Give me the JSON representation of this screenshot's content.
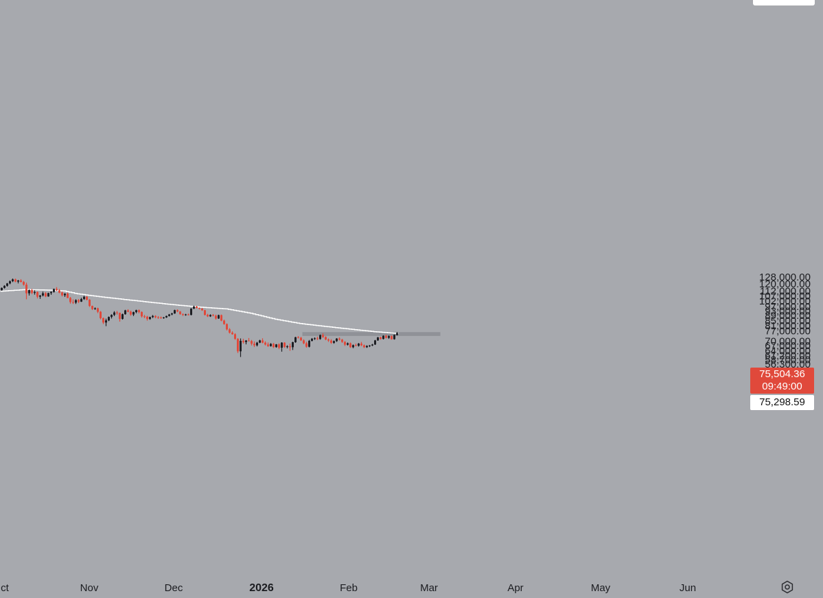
{
  "chart_data": {
    "type": "candlestick",
    "x_ticks": [
      "ct",
      "Nov",
      "Dec",
      "2026",
      "Feb",
      "Mar",
      "Apr",
      "May",
      "Jun"
    ],
    "y_ticks": [
      "128,000.00",
      "120,000.00",
      "112,000.00",
      "107,000.00",
      "102,000.00",
      "97,000.00",
      "93,000.00",
      "89,000.00",
      "85,000.00",
      "81,000.00",
      "77,000.00",
      "70,000.00",
      "67,000.00",
      "64,000.00",
      "61,200.00",
      "58,700.00",
      "56,300.00"
    ],
    "ylim": [
      55000,
      133000
    ],
    "y_scale": "log",
    "series": [
      {
        "candles": [
          [
            113000,
            116000,
            112500,
            115500
          ],
          [
            115500,
            118500,
            114800,
            117800
          ],
          [
            117800,
            121000,
            116900,
            120500
          ],
          [
            120500,
            124000,
            119500,
            123000
          ],
          [
            123000,
            126200,
            122000,
            125200
          ],
          [
            125200,
            126100,
            121800,
            122600
          ],
          [
            122600,
            124500,
            120500,
            123900
          ],
          [
            123900,
            125400,
            121700,
            122200
          ],
          [
            122200,
            123300,
            118000,
            119100
          ],
          [
            119100,
            121400,
            103800,
            109800
          ],
          [
            109800,
            113800,
            107500,
            113200
          ],
          [
            113200,
            114500,
            108900,
            110200
          ],
          [
            110200,
            113000,
            108400,
            111100
          ],
          [
            111100,
            111700,
            104600,
            106300
          ],
          [
            106300,
            108000,
            104200,
            107600
          ],
          [
            107600,
            111600,
            106600,
            109800
          ],
          [
            109800,
            111000,
            105900,
            106600
          ],
          [
            106600,
            110400,
            106300,
            110000
          ],
          [
            110000,
            111900,
            108200,
            111200
          ],
          [
            111200,
            114800,
            110500,
            114300
          ],
          [
            114300,
            116400,
            112400,
            112900
          ],
          [
            112900,
            114300,
            109800,
            110500
          ],
          [
            110500,
            111700,
            106600,
            107800
          ],
          [
            107800,
            109800,
            106100,
            109500
          ],
          [
            109500,
            110600,
            104900,
            105100
          ],
          [
            105100,
            106100,
            99600,
            101100
          ],
          [
            101100,
            103700,
            99300,
            100600
          ],
          [
            100600,
            103800,
            99300,
            103000
          ],
          [
            103000,
            104000,
            100100,
            101500
          ],
          [
            101500,
            105200,
            101200,
            104000
          ],
          [
            104000,
            107200,
            103200,
            106300
          ],
          [
            106300,
            106900,
            102800,
            103300
          ],
          [
            103300,
            103900,
            96600,
            97500
          ],
          [
            97500,
            97800,
            93800,
            94700
          ],
          [
            94700,
            96100,
            94000,
            95400
          ],
          [
            95400,
            95900,
            91100,
            92300
          ],
          [
            92300,
            92900,
            85900,
            86900
          ],
          [
            86900,
            87400,
            82200,
            83400
          ],
          [
            83400,
            86500,
            80600,
            85100
          ],
          [
            85100,
            88300,
            84500,
            87900
          ],
          [
            87900,
            90100,
            86600,
            89600
          ],
          [
            89600,
            92800,
            88600,
            91700
          ],
          [
            91700,
            93000,
            89800,
            91300
          ],
          [
            91300,
            91600,
            84100,
            86300
          ],
          [
            86300,
            90700,
            85700,
            90200
          ],
          [
            90200,
            94000,
            89800,
            93500
          ],
          [
            93500,
            94500,
            91900,
            92300
          ],
          [
            92300,
            93300,
            88900,
            89900
          ],
          [
            89900,
            92400,
            88600,
            92000
          ],
          [
            92000,
            94100,
            91000,
            93700
          ],
          [
            93700,
            94300,
            90900,
            92100
          ],
          [
            92100,
            92600,
            87400,
            88400
          ],
          [
            88400,
            89600,
            86900,
            88100
          ],
          [
            88100,
            88800,
            84900,
            86200
          ],
          [
            86200,
            88100,
            85600,
            87800
          ],
          [
            87800,
            89500,
            87000,
            88700
          ],
          [
            88700,
            89300,
            86800,
            87700
          ],
          [
            87700,
            88600,
            86300,
            87400
          ],
          [
            87400,
            88300,
            86400,
            87200
          ],
          [
            87200,
            87900,
            86400,
            87500
          ],
          [
            87500,
            89000,
            87100,
            88700
          ],
          [
            88700,
            90400,
            88300,
            90000
          ],
          [
            90000,
            91400,
            89300,
            90800
          ],
          [
            90800,
            94100,
            90500,
            93700
          ],
          [
            93700,
            94400,
            91900,
            92500
          ],
          [
            92500,
            92900,
            89800,
            90200
          ],
          [
            90200,
            90900,
            88700,
            89800
          ],
          [
            89800,
            90500,
            88900,
            90000
          ],
          [
            90000,
            90700,
            89200,
            89600
          ],
          [
            89600,
            95400,
            89200,
            95100
          ],
          [
            95100,
            97800,
            94600,
            96900
          ],
          [
            96900,
            97500,
            95200,
            95600
          ],
          [
            95600,
            96100,
            94300,
            95000
          ],
          [
            95000,
            95600,
            93100,
            93600
          ],
          [
            93600,
            94000,
            89100,
            89600
          ],
          [
            89600,
            90500,
            87800,
            88400
          ],
          [
            88400,
            90100,
            87900,
            89500
          ],
          [
            89500,
            90300,
            88400,
            88900
          ],
          [
            88900,
            89800,
            85700,
            86600
          ],
          [
            86600,
            89800,
            86300,
            89400
          ],
          [
            89400,
            89900,
            84400,
            84900
          ],
          [
            84900,
            85700,
            81700,
            82200
          ],
          [
            82200,
            82700,
            77400,
            78200
          ],
          [
            78200,
            79100,
            75200,
            75800
          ],
          [
            75800,
            76800,
            74400,
            74700
          ],
          [
            74700,
            75400,
            70900,
            71500
          ],
          [
            71500,
            72000,
            62600,
            63600
          ],
          [
            63600,
            71800,
            60300,
            70200
          ],
          [
            70200,
            71600,
            68400,
            69400
          ],
          [
            69400,
            70700,
            67900,
            70400
          ],
          [
            70400,
            72100,
            69900,
            70100
          ],
          [
            70100,
            70800,
            67200,
            68300
          ],
          [
            68300,
            69800,
            66200,
            67300
          ],
          [
            67300,
            69500,
            66600,
            69000
          ],
          [
            69000,
            70900,
            68700,
            70500
          ],
          [
            70500,
            71900,
            68600,
            69000
          ],
          [
            69000,
            69900,
            67200,
            67800
          ],
          [
            67800,
            69100,
            66300,
            66800
          ],
          [
            66800,
            68700,
            66500,
            68200
          ],
          [
            68200,
            68800,
            65600,
            66200
          ],
          [
            66200,
            68100,
            65800,
            67900
          ],
          [
            67900,
            68600,
            64900,
            65800
          ],
          [
            65800,
            69300,
            63400,
            69000
          ],
          [
            69000,
            69300,
            65700,
            66300
          ],
          [
            66300,
            67300,
            65400,
            66700
          ],
          [
            66700,
            68400,
            63900,
            66100
          ],
          [
            66100,
            69600,
            64400,
            69300
          ],
          [
            69300,
            72900,
            68900,
            72600
          ],
          [
            72600,
            73400,
            71800,
            72300
          ],
          [
            72300,
            72800,
            70100,
            70500
          ],
          [
            70500,
            71200,
            68000,
            68600
          ],
          [
            68600,
            69600,
            65800,
            66400
          ],
          [
            66400,
            70800,
            66000,
            70200
          ],
          [
            70200,
            72100,
            69800,
            71600
          ],
          [
            71600,
            72500,
            70800,
            71900
          ],
          [
            71900,
            73000,
            70700,
            71400
          ],
          [
            71400,
            74500,
            71000,
            74100
          ],
          [
            74100,
            75400,
            72100,
            72800
          ],
          [
            72800,
            73200,
            70600,
            71100
          ],
          [
            71100,
            71800,
            69500,
            70400
          ],
          [
            70400,
            71300,
            68200,
            68900
          ],
          [
            68900,
            70400,
            68300,
            70000
          ],
          [
            70000,
            72000,
            69500,
            71700
          ],
          [
            71700,
            72500,
            70400,
            71000
          ],
          [
            71000,
            71500,
            68900,
            69500
          ],
          [
            69500,
            70000,
            66900,
            67700
          ],
          [
            67700,
            69100,
            67200,
            68600
          ],
          [
            68600,
            69100,
            65700,
            66100
          ],
          [
            66100,
            67800,
            65500,
            67400
          ],
          [
            67400,
            68400,
            66700,
            67000
          ],
          [
            67000,
            68800,
            66500,
            68400
          ],
          [
            68400,
            69500,
            66800,
            67300
          ],
          [
            67300,
            67800,
            65600,
            66100
          ],
          [
            66100,
            67300,
            65700,
            66900
          ],
          [
            66900,
            67500,
            66200,
            67200
          ],
          [
            67200,
            68200,
            66800,
            67800
          ],
          [
            67800,
            70800,
            67500,
            70500
          ],
          [
            70500,
            72800,
            70200,
            72500
          ],
          [
            72500,
            73000,
            71000,
            71500
          ],
          [
            71500,
            74000,
            71100,
            73600
          ],
          [
            73600,
            74300,
            71800,
            72200
          ],
          [
            72200,
            73900,
            71500,
            73400
          ],
          [
            73400,
            73800,
            71000,
            71300
          ],
          [
            71300,
            74500,
            71000,
            74200
          ],
          [
            74200,
            76300,
            73800,
            75504
          ]
        ]
      },
      {
        "name": "moving-average",
        "x_candle_index": [
          0,
          9,
          18,
          23,
          28,
          37,
          46,
          55,
          64,
          73,
          82,
          91,
          100,
          109,
          118,
          127,
          136,
          144
        ],
        "values": [
          112000,
          113700,
          113100,
          112200,
          109200,
          106000,
          103300,
          100700,
          98300,
          96300,
          94800,
          91000,
          86000,
          82600,
          80400,
          78400,
          76500,
          75300
        ]
      }
    ],
    "highlight_zone": {
      "y_range": [
        73500,
        76200
      ],
      "x_candle_range": [
        110,
        160
      ]
    },
    "current_price": {
      "price": "75,504.36",
      "countdown": "09:49:00"
    },
    "prev_close_price": "75,298.59",
    "colors": {
      "up": "#1e1f24",
      "down": "#e0493b",
      "ma": "#ffffff",
      "zone": "#8f9197",
      "background": "#a7a9ae"
    }
  }
}
